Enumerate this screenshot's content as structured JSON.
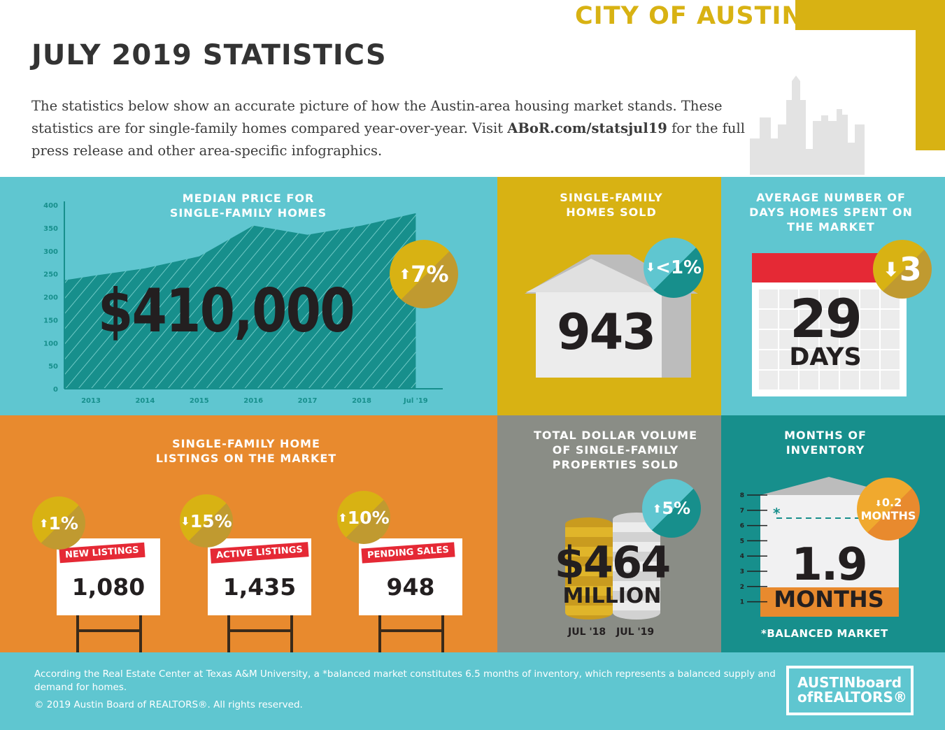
{
  "header": {
    "city": "CITY OF AUSTIN",
    "title": "JULY 2019 STATISTICS",
    "intro_1": "The statistics below show an accurate picture of how the Austin-area housing market stands. These statistics are for single-family homes compared year-over-year. Visit ",
    "intro_link": "ABoR.com/statsjul19",
    "intro_2": " for the full press release and other area-specific infographics."
  },
  "median_price": {
    "title_1": "MEDIAN PRICE FOR",
    "title_2": "SINGLE-FAMILY HOMES",
    "value": "$410,000",
    "change": "7%",
    "direction": "up"
  },
  "homes_sold": {
    "title_1": "SINGLE-FAMILY",
    "title_2": "HOMES SOLD",
    "value": "943",
    "change": "<1%",
    "direction": "down"
  },
  "days_on_market": {
    "title_1": "AVERAGE NUMBER OF",
    "title_2": "DAYS HOMES SPENT ON",
    "title_3": "THE MARKET",
    "value": "29",
    "unit": "DAYS",
    "change": "3",
    "direction": "down"
  },
  "listings": {
    "title_1": "SINGLE-FAMILY HOME",
    "title_2": "LISTINGS ON THE MARKET",
    "items": [
      {
        "label": "NEW LISTINGS",
        "value": "1,080",
        "change": "1%",
        "direction": "up"
      },
      {
        "label": "ACTIVE LISTINGS",
        "value": "1,435",
        "change": "15%",
        "direction": "down"
      },
      {
        "label": "PENDING SALES",
        "value": "948",
        "change": "10%",
        "direction": "up"
      }
    ]
  },
  "dollar_volume": {
    "title_1": "TOTAL DOLLAR VOLUME",
    "title_2": "OF SINGLE-FAMILY",
    "title_3": "PROPERTIES SOLD",
    "value": "$464",
    "unit": "MILLION",
    "change": "5%",
    "direction": "up",
    "label_prev": "JUL '18",
    "label_curr": "JUL '19"
  },
  "inventory": {
    "title_1": "MONTHS OF",
    "title_2": "INVENTORY",
    "value": "1.9",
    "unit": "MONTHS",
    "change": "0.2",
    "change_unit": "MONTHS",
    "direction": "down",
    "balanced_marker": "*",
    "balanced_value": 6.5,
    "footnote": "*BALANCED MARKET",
    "scale_ticks": [
      "1",
      "2",
      "3",
      "4",
      "5",
      "6",
      "7",
      "8"
    ]
  },
  "footer": {
    "note": "According the Real Estate Center at Texas A&M University, a *balanced market constitutes 6.5 months of inventory, which represents a balanced supply and demand for homes.",
    "copyright": "© 2019  Austin Board of REALTORS®. All rights reserved.",
    "logo_line1": "AUSTINboard",
    "logo_line2": "ofREALTORS®"
  },
  "colors": {
    "teal": "#5fc6d0",
    "dark_teal": "#178f8c",
    "gold": "#d8b213",
    "orange": "#e88a2e",
    "gray": "#8a8d86",
    "red": "#e52935"
  },
  "chart_data": {
    "type": "area",
    "ylim": [
      0,
      400
    ],
    "yticks": [
      "0",
      "50",
      "100",
      "150",
      "200",
      "250",
      "300",
      "350",
      "400"
    ],
    "categories": [
      "2013",
      "2014",
      "2015",
      "2016",
      "2017",
      "2018",
      "Jul '19"
    ],
    "start_value": 236,
    "values": [
      245,
      262,
      288,
      355,
      335,
      355,
      382
    ],
    "grid": false
  }
}
